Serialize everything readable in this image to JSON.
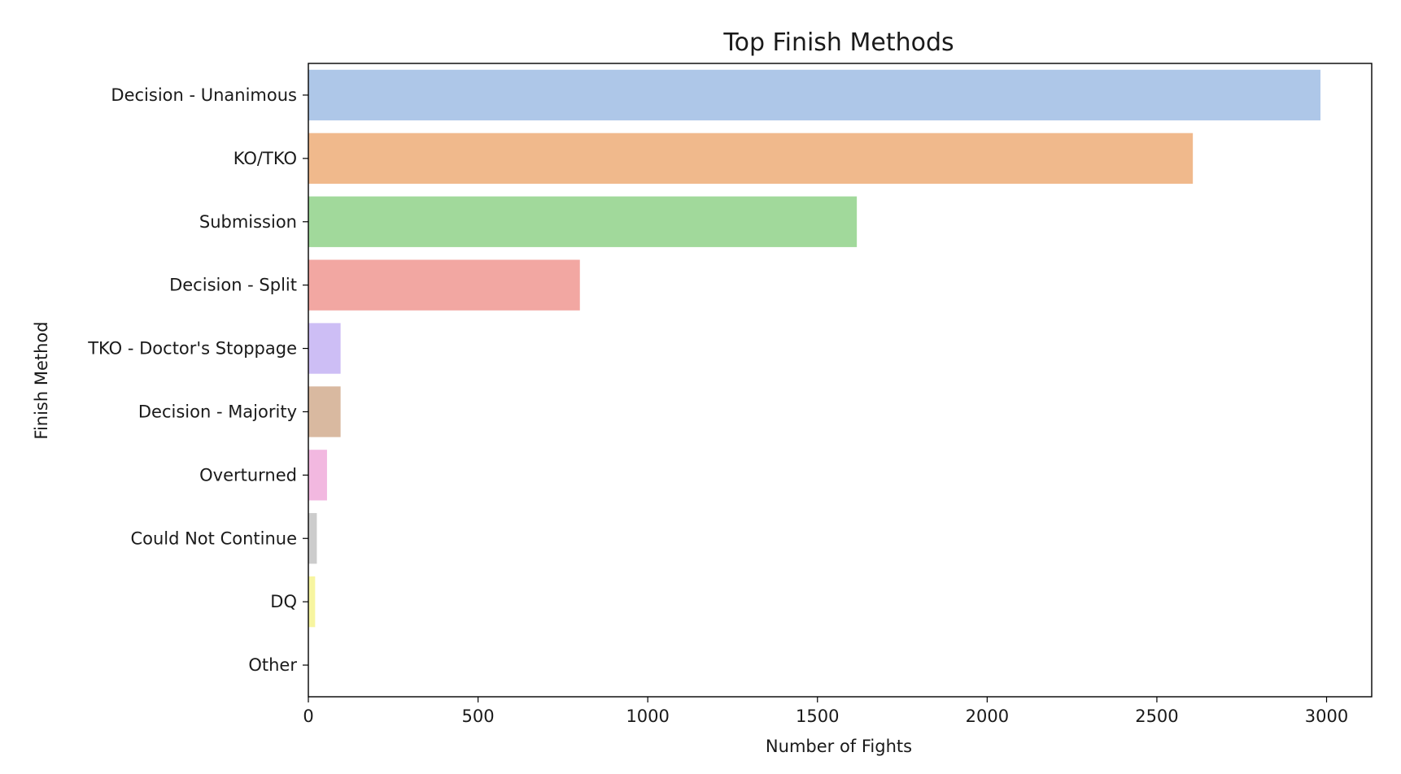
{
  "chart_data": {
    "type": "bar",
    "orientation": "horizontal",
    "title": "Top Finish Methods",
    "xlabel": "Number of Fights",
    "ylabel": "Finish Method",
    "categories": [
      "Decision - Unanimous",
      "KO/TKO",
      "Submission",
      "Decision - Split",
      "TKO - Doctor's Stoppage",
      "Decision - Majority",
      "Overturned",
      "Could Not Continue",
      "DQ",
      "Other"
    ],
    "values": [
      2982,
      2606,
      1616,
      800,
      95,
      95,
      55,
      25,
      20,
      0
    ],
    "colors": [
      "#aec7e8",
      "#f0b98c",
      "#a1d99b",
      "#f2a7a2",
      "#cdbef5",
      "#d9b9a0",
      "#f2b8e0",
      "#cccccc",
      "#f7f5a0",
      "#a6e3ea"
    ],
    "xlim": [
      0,
      3133
    ],
    "xticks": [
      0,
      500,
      1000,
      1500,
      2000,
      2500,
      3000
    ],
    "grid": false,
    "legend": "none"
  }
}
